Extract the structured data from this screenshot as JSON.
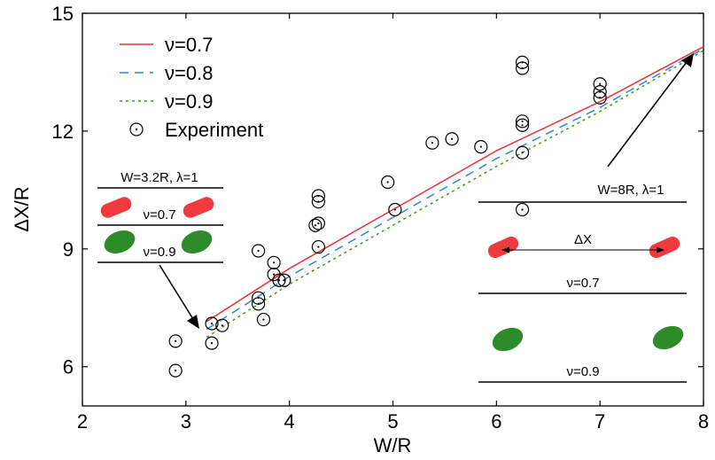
{
  "chart_data": {
    "type": "line",
    "xlabel": "W/R",
    "ylabel": "ΔX/R",
    "xlim": [
      2,
      8
    ],
    "ylim": [
      5,
      15
    ],
    "xticks": [
      "2",
      "3",
      "4",
      "5",
      "6",
      "7",
      "8"
    ],
    "yticks": [
      "6",
      "9",
      "12",
      "15"
    ],
    "legend": {
      "position": "top-left",
      "entries": [
        "ν=0.7",
        "ν=0.8",
        "ν=0.9",
        "Experiment"
      ]
    },
    "series": [
      {
        "name": "ν=0.7",
        "style": "solid",
        "color": "#e8333a",
        "x": [
          3.2,
          4.0,
          5.0,
          6.0,
          7.0,
          8.0
        ],
        "y": [
          7.15,
          8.5,
          10.0,
          11.5,
          12.75,
          14.15
        ]
      },
      {
        "name": "ν=0.8",
        "style": "dashed",
        "color": "#2f86d6",
        "x": [
          3.2,
          4.0,
          5.0,
          6.0,
          7.0,
          8.0
        ],
        "y": [
          6.95,
          8.3,
          9.8,
          11.3,
          12.6,
          14.1
        ]
      },
      {
        "name": "ν=0.9",
        "style": "dotted",
        "color": "#3a9a1c",
        "x": [
          3.2,
          4.0,
          5.0,
          6.0,
          7.0,
          8.0
        ],
        "y": [
          6.75,
          8.1,
          9.6,
          11.1,
          12.5,
          14.05
        ]
      },
      {
        "name": "Experiment",
        "style": "marker",
        "points": [
          [
            2.9,
            6.65
          ],
          [
            2.9,
            5.9
          ],
          [
            3.25,
            7.1
          ],
          [
            3.25,
            6.6
          ],
          [
            3.35,
            7.05
          ],
          [
            3.7,
            8.95
          ],
          [
            3.7,
            7.75
          ],
          [
            3.7,
            7.6
          ],
          [
            3.75,
            7.2
          ],
          [
            3.85,
            8.65
          ],
          [
            3.85,
            8.35
          ],
          [
            3.9,
            8.2
          ],
          [
            3.95,
            8.2
          ],
          [
            4.25,
            9.6
          ],
          [
            4.28,
            10.35
          ],
          [
            4.28,
            10.2
          ],
          [
            4.28,
            9.65
          ],
          [
            4.28,
            9.05
          ],
          [
            4.95,
            10.7
          ],
          [
            5.02,
            10.0
          ],
          [
            5.38,
            11.7
          ],
          [
            5.57,
            11.8
          ],
          [
            5.85,
            11.6
          ],
          [
            6.25,
            13.75
          ],
          [
            6.25,
            13.6
          ],
          [
            6.25,
            12.25
          ],
          [
            6.25,
            12.15
          ],
          [
            6.25,
            11.45
          ],
          [
            6.25,
            10.0
          ],
          [
            7.0,
            13.2
          ],
          [
            7.0,
            13.0
          ],
          [
            7.0,
            12.85
          ]
        ]
      }
    ],
    "annotations": {
      "left": {
        "title": "W=3.2R, λ=1",
        "label_a": "ν=0.7",
        "label_b": "ν=0.9"
      },
      "right": {
        "title": "W=8R, λ=1",
        "delta": "ΔX",
        "label_a": "ν=0.7",
        "label_b": "ν=0.9"
      }
    }
  },
  "colors": {
    "red": "#e8333a",
    "blue": "#2f86d6",
    "green": "#3a9a1c",
    "blob_red": "#ef3b3f",
    "blob_green": "#2e8b2a"
  }
}
